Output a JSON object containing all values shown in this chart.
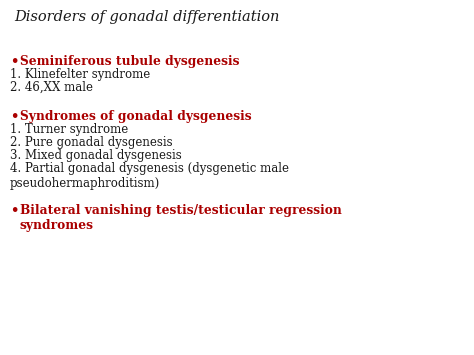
{
  "bg_color": "#ffffff",
  "title": "Disorders of gonadal differentiation",
  "title_color": "#1a1a1a",
  "title_fontsize": 10.5,
  "title_style": "italic",
  "text_family": "serif",
  "sections": [
    {
      "bullet": "•",
      "heading": "Seminiferous tubule dysgenesis",
      "heading_color": "#aa0000",
      "items": [
        "1. Klinefelter syndrome",
        "2. 46,XX male"
      ]
    },
    {
      "bullet": "•",
      "heading": "Syndromes of gonadal dysgenesis",
      "heading_color": "#aa0000",
      "items": [
        "1. Turner syndrome",
        "2. Pure gonadal dysgenesis",
        "3. Mixed gonadal dysgenesis",
        "4. Partial gonadal dysgenesis (dysgenetic male\npseudohermaphroditism)"
      ]
    },
    {
      "bullet": "•",
      "heading": "Bilateral vanishing testis/testicular regression\nsyndromes",
      "heading_color": "#aa0000",
      "items": []
    }
  ],
  "item_color": "#1a1a1a",
  "item_fontsize": 8.5,
  "heading_fontsize": 8.8,
  "bullet_fontsize": 9.5
}
